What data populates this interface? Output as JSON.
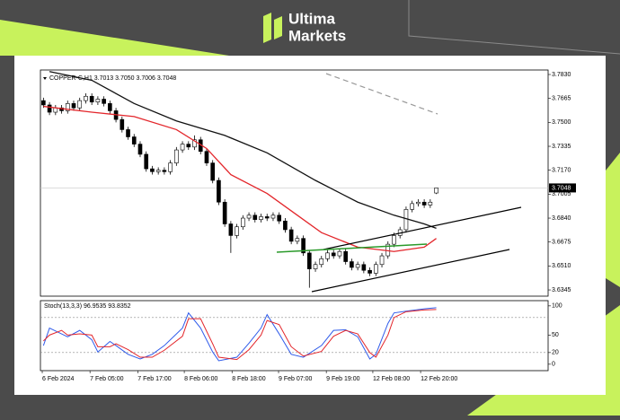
{
  "header": {
    "brand_top": "Ultima",
    "brand_bottom": "Markets"
  },
  "chart_data": [
    {
      "type": "candlestick",
      "title": "COPPER-C,H1 3.7013 3.7050 3.7006 3.7048",
      "xlim": [
        -0.5,
        83.5
      ],
      "ylim": [
        3.6302,
        3.7861
      ],
      "yticks": [
        {
          "value": 3.783,
          "label": "3.7830"
        },
        3.7665,
        {
          "value": 3.75,
          "label": "3.7500"
        },
        3.7335,
        {
          "value": 3.717,
          "label": "3.7170"
        },
        3.7005,
        {
          "value": 3.684,
          "label": "3.6840"
        },
        3.6675,
        {
          "value": 3.651,
          "label": "3.6510"
        },
        3.6345
      ],
      "up_color": "#ffffff",
      "down_color": "#000000",
      "open": [
        3.765,
        3.762,
        3.757,
        3.76,
        3.758,
        3.763,
        3.76,
        3.765,
        3.768,
        3.764,
        3.766,
        3.763,
        3.758,
        3.752,
        3.745,
        3.74,
        3.735,
        3.728,
        3.718,
        3.716,
        3.717,
        3.716,
        3.722,
        3.731,
        3.735,
        3.733,
        3.738,
        3.73,
        3.722,
        3.71,
        3.695,
        3.68,
        3.672,
        3.678,
        3.684,
        3.686,
        3.683,
        3.685,
        3.684,
        3.686,
        3.682,
        3.676,
        3.668,
        3.67,
        3.66,
        3.649,
        3.652,
        3.656,
        3.66,
        3.658,
        3.661,
        3.654,
        3.65,
        3.652,
        3.648,
        3.646,
        3.652,
        3.658,
        3.666,
        3.672,
        3.676,
        3.69,
        3.694,
        3.695,
        3.693,
        3.7013
      ],
      "high": [
        3.767,
        3.764,
        3.762,
        3.762,
        3.765,
        3.765,
        3.767,
        3.77,
        3.77,
        3.768,
        3.768,
        3.765,
        3.76,
        3.754,
        3.747,
        3.742,
        3.737,
        3.73,
        3.72,
        3.719,
        3.719,
        3.724,
        3.733,
        3.737,
        3.737,
        3.741,
        3.74,
        3.732,
        3.724,
        3.712,
        3.697,
        3.682,
        3.68,
        3.686,
        3.688,
        3.688,
        3.687,
        3.687,
        3.688,
        3.688,
        3.684,
        3.678,
        3.672,
        3.672,
        3.662,
        3.654,
        3.658,
        3.662,
        3.662,
        3.663,
        3.663,
        3.656,
        3.654,
        3.654,
        3.65,
        3.654,
        3.66,
        3.668,
        3.674,
        3.678,
        3.692,
        3.696,
        3.697,
        3.697,
        3.697,
        3.705
      ],
      "low": [
        3.76,
        3.755,
        3.755,
        3.756,
        3.756,
        3.758,
        3.758,
        3.763,
        3.762,
        3.762,
        3.761,
        3.756,
        3.75,
        3.743,
        3.738,
        3.733,
        3.726,
        3.716,
        3.714,
        3.714,
        3.714,
        3.714,
        3.72,
        3.729,
        3.731,
        3.731,
        3.728,
        3.72,
        3.708,
        3.693,
        3.678,
        3.66,
        3.67,
        3.676,
        3.682,
        3.681,
        3.681,
        3.682,
        3.682,
        3.68,
        3.674,
        3.666,
        3.666,
        3.658,
        3.636,
        3.647,
        3.65,
        3.654,
        3.656,
        3.656,
        3.652,
        3.648,
        3.648,
        3.646,
        3.644,
        3.644,
        3.65,
        3.656,
        3.664,
        3.67,
        3.674,
        3.688,
        3.692,
        3.691,
        3.691,
        3.7006
      ],
      "close": [
        3.762,
        3.757,
        3.76,
        3.758,
        3.763,
        3.76,
        3.765,
        3.768,
        3.764,
        3.766,
        3.763,
        3.758,
        3.752,
        3.745,
        3.74,
        3.735,
        3.728,
        3.718,
        3.716,
        3.717,
        3.716,
        3.722,
        3.731,
        3.735,
        3.733,
        3.738,
        3.73,
        3.722,
        3.71,
        3.695,
        3.68,
        3.672,
        3.678,
        3.684,
        3.686,
        3.683,
        3.685,
        3.684,
        3.686,
        3.682,
        3.676,
        3.668,
        3.67,
        3.66,
        3.649,
        3.652,
        3.656,
        3.66,
        3.658,
        3.661,
        3.654,
        3.65,
        3.652,
        3.648,
        3.646,
        3.652,
        3.658,
        3.666,
        3.672,
        3.676,
        3.69,
        3.694,
        3.695,
        3.693,
        3.695,
        3.7048
      ],
      "overlays": [
        {
          "color": "#111111",
          "x": [
            1,
            8,
            15,
            22,
            30,
            37,
            45,
            52,
            58,
            63,
            65
          ],
          "values": [
            3.785,
            3.779,
            3.763,
            3.751,
            3.741,
            3.729,
            3.71,
            3.695,
            3.686,
            3.68,
            3.677
          ]
        },
        {
          "color": "#e3262b",
          "x": [
            0,
            8,
            15,
            22,
            27,
            31,
            37,
            42,
            46,
            52,
            58,
            63,
            65
          ],
          "values": [
            3.761,
            3.757,
            3.754,
            3.745,
            3.732,
            3.714,
            3.701,
            3.686,
            3.674,
            3.664,
            3.661,
            3.664,
            3.67
          ]
        }
      ],
      "last_price": 3.7048
    },
    {
      "type": "line",
      "title": "Stoch(13,3,3) 96.9535 93.8352",
      "xlim": [
        -0.5,
        83.5
      ],
      "xticks": [
        {
          "value": -0.2,
          "label": "6 Feb 2024"
        },
        {
          "value": 7.7,
          "label": "7 Feb 05:00"
        },
        {
          "value": 15.6,
          "label": "7 Feb 17:00"
        },
        {
          "value": 23.3,
          "label": "8 Feb 06:00"
        },
        {
          "value": 31.2,
          "label": "8 Feb 18:00"
        },
        {
          "value": 38.9,
          "label": "9 Feb 07:00"
        },
        {
          "value": 46.8,
          "label": "9 Feb 19:00"
        },
        {
          "value": 54.5,
          "label": "12 Feb 08:00"
        },
        {
          "value": 62.4,
          "label": "12 Feb 20:00"
        }
      ],
      "ylim": [
        -11,
        109
      ],
      "yticks": [
        100,
        50,
        20,
        0
      ],
      "levels": [
        80,
        20
      ],
      "x": [
        0,
        1,
        3,
        4,
        6,
        8,
        9,
        11,
        12,
        14,
        16,
        18,
        20,
        23,
        24,
        26,
        28,
        29,
        32,
        34,
        36,
        37,
        39,
        41,
        43,
        46,
        48,
        50,
        52,
        54,
        55,
        57,
        58,
        60,
        63,
        65
      ],
      "series": [
        {
          "color": "#2f5bea",
          "values": [
            32,
            62,
            52,
            47,
            58,
            42,
            21,
            39,
            32,
            17,
            9,
            17,
            32,
            62,
            88,
            62,
            21,
            6,
            12,
            36,
            62,
            85,
            52,
            17,
            12,
            32,
            58,
            59,
            47,
            9,
            17,
            70,
            88,
            91,
            95,
            96.9535
          ]
        },
        {
          "color": "#e3262b",
          "values": [
            40,
            50,
            58,
            50,
            52,
            50,
            30,
            30,
            35,
            25,
            12,
            12,
            24,
            48,
            78,
            78,
            35,
            12,
            8,
            25,
            50,
            75,
            68,
            30,
            14,
            22,
            48,
            58,
            52,
            20,
            12,
            50,
            80,
            90,
            93,
            93.8352
          ]
        }
      ]
    }
  ]
}
